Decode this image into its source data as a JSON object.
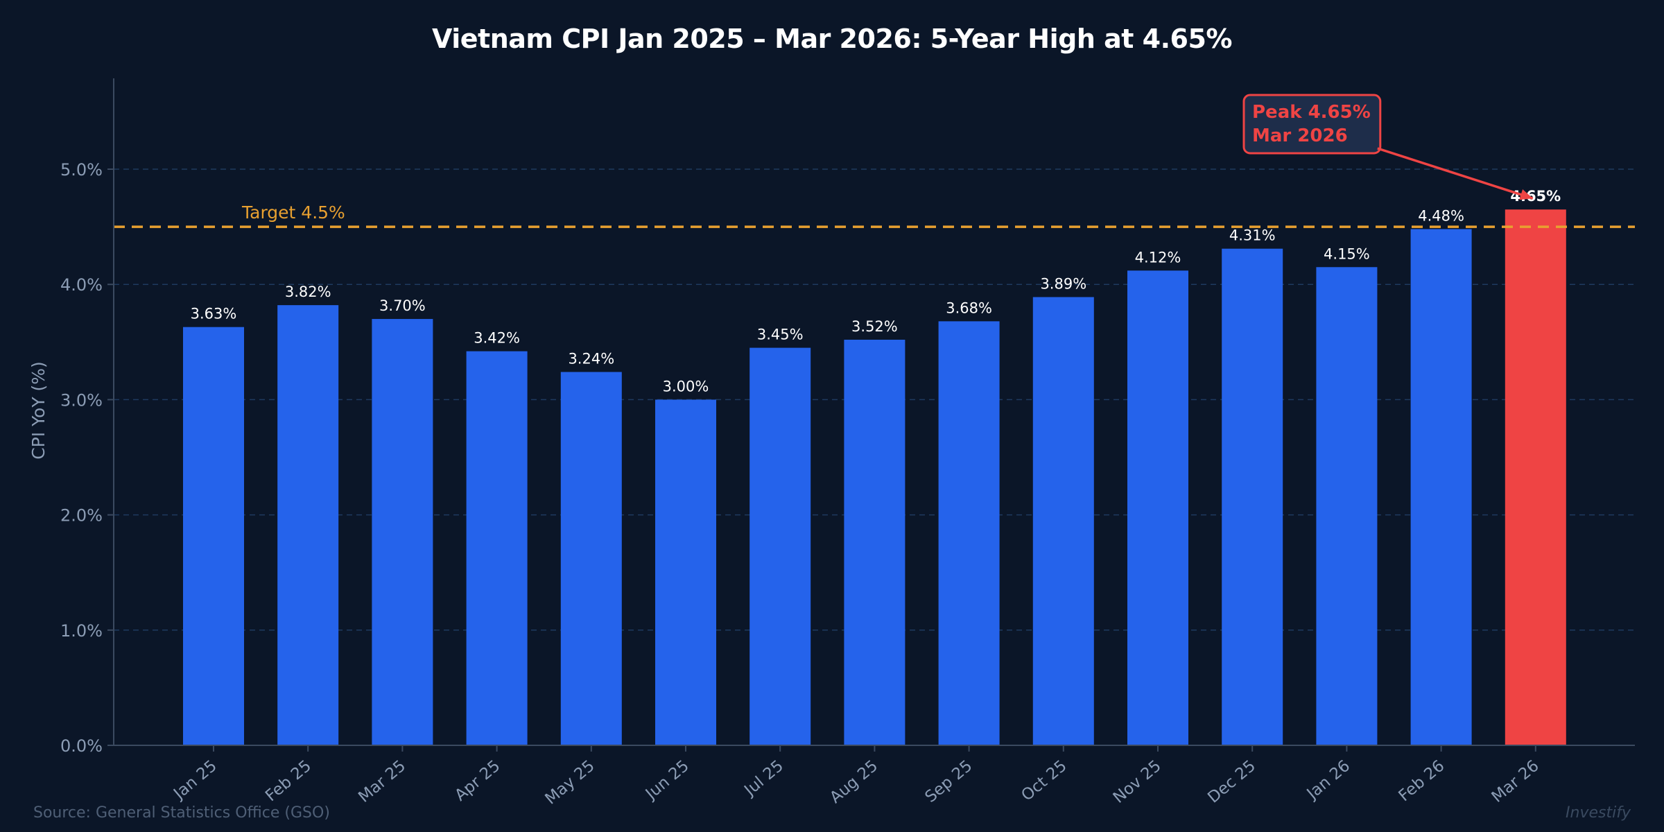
{
  "chart_data": {
    "type": "bar",
    "title": "Vietnam CPI Jan 2025 – Mar 2026: 5-Year High at 4.65%",
    "xlabel": "",
    "ylabel": "CPI YoY (%)",
    "ylim": [
      0,
      5.8
    ],
    "yticks": [
      0,
      1,
      2,
      3,
      4,
      5
    ],
    "ytick_labels": [
      "0.0%",
      "1.0%",
      "2.0%",
      "3.0%",
      "4.0%",
      "5.0%"
    ],
    "grid": true,
    "legend": null,
    "categories": [
      "Jan 25",
      "Feb 25",
      "Mar 25",
      "Apr 25",
      "May 25",
      "Jun 25",
      "Jul 25",
      "Aug 25",
      "Sep 25",
      "Oct 25",
      "Nov 25",
      "Dec 25",
      "Jan 26",
      "Feb 26",
      "Mar 26"
    ],
    "values": [
      3.63,
      3.82,
      3.7,
      3.42,
      3.24,
      3.0,
      3.45,
      3.52,
      3.68,
      3.89,
      4.12,
      4.31,
      4.15,
      4.48,
      4.65
    ],
    "value_labels": [
      "3.63%",
      "3.82%",
      "3.70%",
      "3.42%",
      "3.24%",
      "3.00%",
      "3.45%",
      "3.52%",
      "3.68%",
      "3.89%",
      "4.12%",
      "4.31%",
      "4.15%",
      "4.48%",
      "4.65%"
    ],
    "highlight_index": 14,
    "reference_line": {
      "value": 4.5,
      "label": "Target 4.5%",
      "style": "dashed"
    },
    "annotation": {
      "line1": "Peak 4.65%",
      "line2": "Mar 2026",
      "points_to": "Mar 26"
    },
    "colors": {
      "background": "#0b1628",
      "bar": "#2563eb",
      "bar_highlight": "#ef4444",
      "target_line": "#e8a030",
      "grid": "#1e3a5f",
      "axis": "#3b4a60",
      "tick_text": "#8c9db5",
      "value_text": "#ffffff",
      "annotation": "#ef4444",
      "annotation_bg": "#1e2d4a"
    }
  },
  "footer": {
    "source": "Source: General Statistics Office (GSO)",
    "watermark": "Investify"
  }
}
